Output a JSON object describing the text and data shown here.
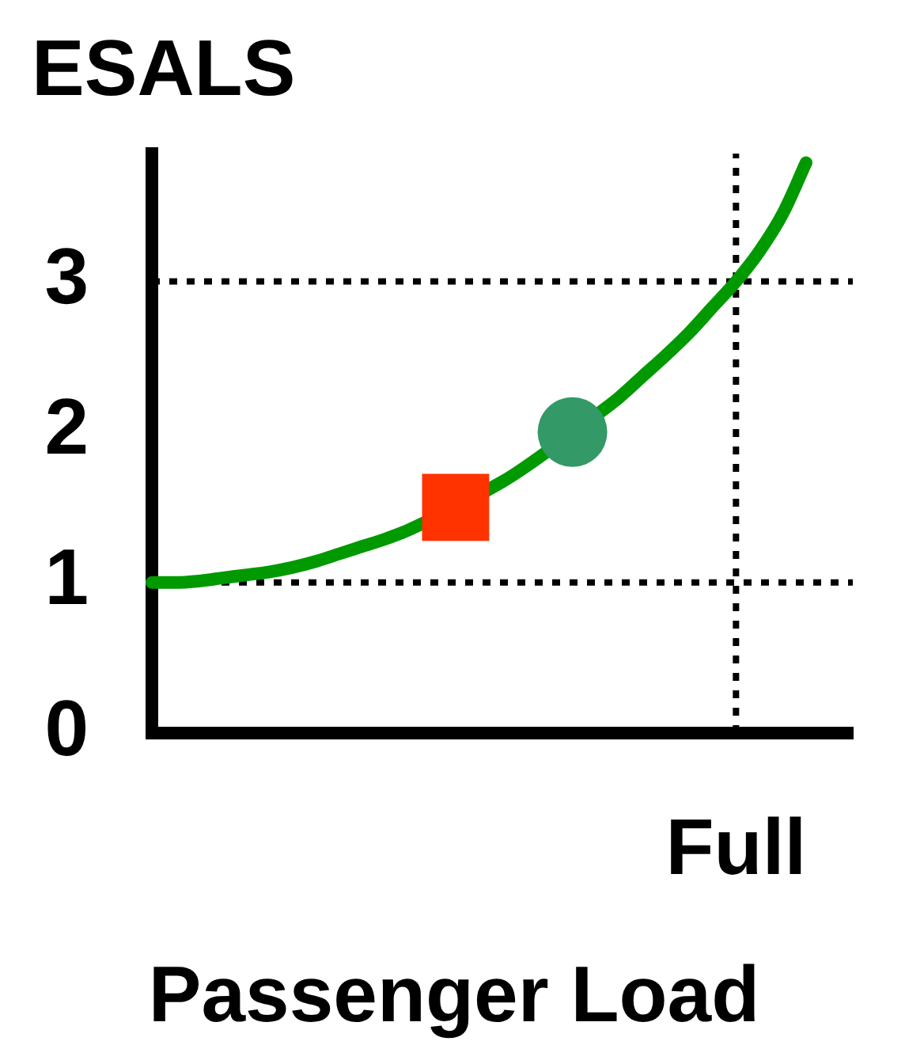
{
  "chart_data": {
    "type": "line",
    "ylabel": "ESALS",
    "xlabel": "Passenger Load",
    "categories": [
      null,
      null,
      null,
      null,
      null,
      null,
      null,
      null,
      null,
      null,
      null,
      null,
      null,
      null,
      null,
      null,
      null,
      null,
      null,
      null,
      null,
      null,
      null,
      null,
      null,
      "Full",
      null,
      null,
      null,
      null,
      null
    ],
    "ylim": [
      0,
      3.85
    ],
    "yticks": [
      0,
      1,
      2,
      3
    ],
    "grid": false,
    "legend": false,
    "series": [
      {
        "type": "line",
        "color": "#009900",
        "marker": "none",
        "line_style": "solid",
        "values": [
          1.0,
          1.0,
          1.01,
          1.03,
          1.05,
          1.07,
          1.1,
          1.14,
          1.19,
          1.24,
          1.29,
          1.35,
          null,
          null,
          null,
          1.67,
          1.77,
          null,
          null,
          2.11,
          2.23,
          2.37,
          2.51,
          2.66,
          2.83,
          3.0,
          3.2,
          3.45,
          3.79,
          null,
          null
        ]
      },
      {
        "type": "scatter",
        "color": "#ff3300",
        "marker": "square",
        "values": [
          null,
          null,
          null,
          null,
          null,
          null,
          null,
          null,
          null,
          null,
          null,
          null,
          null,
          1.5,
          null,
          null,
          null,
          null,
          null,
          null,
          null,
          null,
          null,
          null,
          null,
          null,
          null,
          null,
          null,
          null,
          null
        ]
      },
      {
        "type": "scatter",
        "color": "#339966",
        "marker": "circle",
        "values": [
          null,
          null,
          null,
          null,
          null,
          null,
          null,
          null,
          null,
          null,
          null,
          null,
          null,
          null,
          null,
          null,
          null,
          null,
          2.0,
          null,
          null,
          null,
          null,
          null,
          null,
          null,
          null,
          null,
          null,
          null,
          null
        ]
      }
    ],
    "ref_lines": [
      {
        "axis": "y",
        "value": 1,
        "color": "#000000",
        "line_style": "dotted"
      },
      {
        "axis": "y",
        "value": 3,
        "color": "#000000",
        "line_style": "dotted"
      },
      {
        "axis": "x",
        "value": "Full",
        "color": "#000000",
        "line_style": "dotted"
      }
    ]
  }
}
